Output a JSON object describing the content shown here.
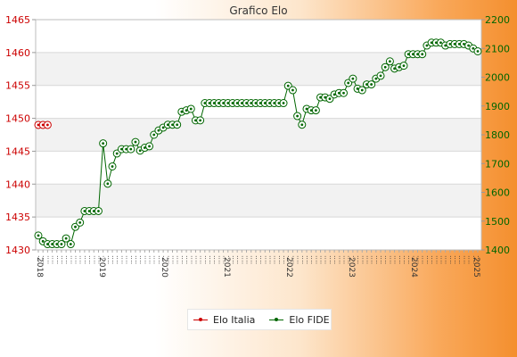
{
  "chart_data": {
    "type": "line",
    "title": "Grafico Elo",
    "y_left": {
      "min": 1430,
      "max": 1465,
      "ticks": [
        "1430",
        "1435",
        "1440",
        "1445",
        "1450",
        "1455",
        "1460",
        "1465"
      ]
    },
    "y_right": {
      "min": 1400,
      "max": 2200,
      "ticks": [
        "1400",
        "1500",
        "1600",
        "1700",
        "1800",
        "1900",
        "2000",
        "2100",
        "2200"
      ]
    },
    "x_labels_visible": [
      "2018",
      "2019",
      "2020",
      "2021",
      "2022",
      "2023",
      "2024",
      "2025"
    ],
    "legend": [
      "Elo Italia",
      "Elo FIDE"
    ],
    "series": [
      {
        "name": "Elo Italia",
        "color": "#cc0000",
        "axis": "left",
        "values": [
          1449,
          1449,
          1449
        ]
      },
      {
        "name": "Elo FIDE",
        "color": "#006600",
        "axis": "right",
        "values": [
          1450,
          1430,
          1420,
          1420,
          1420,
          1420,
          1440,
          1420,
          1480,
          1495,
          1535,
          1535,
          1535,
          1535,
          1770,
          1630,
          1690,
          1735,
          1750,
          1750,
          1750,
          1775,
          1745,
          1755,
          1760,
          1800,
          1815,
          1825,
          1835,
          1835,
          1835,
          1880,
          1885,
          1890,
          1850,
          1850,
          1910,
          1910,
          1910,
          1910,
          1910,
          1910,
          1910,
          1910,
          1910,
          1910,
          1910,
          1910,
          1910,
          1910,
          1910,
          1910,
          1910,
          1910,
          1970,
          1955,
          1865,
          1835,
          1890,
          1885,
          1885,
          1930,
          1930,
          1925,
          1940,
          1945,
          1945,
          1980,
          1995,
          1960,
          1955,
          1975,
          1975,
          1995,
          2005,
          2035,
          2055,
          2030,
          2035,
          2040,
          2080,
          2080,
          2080,
          2080,
          2110,
          2120,
          2120,
          2120,
          2110,
          2115,
          2115,
          2115,
          2115,
          2110,
          2100,
          2090
        ]
      }
    ]
  }
}
